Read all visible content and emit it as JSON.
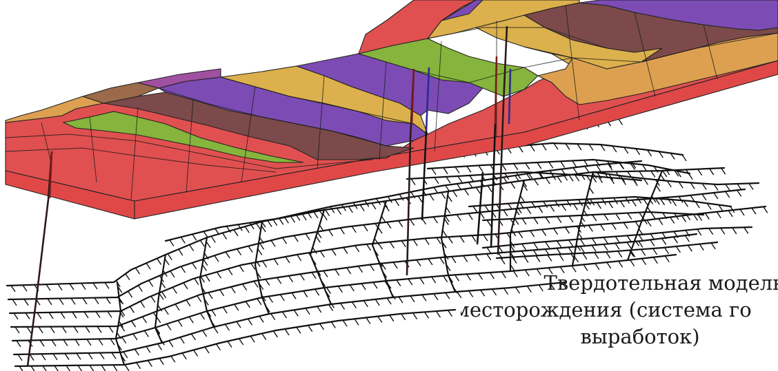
{
  "caption": {
    "line1": "Твердотельная модель",
    "line2": "месторождения (система го",
    "line3": "выработок)"
  },
  "colors": {
    "red": "#e05050",
    "green": "#86b43c",
    "purple": "#7c4cb4",
    "yellow": "#dcb04c",
    "brown": "#7c4a4a",
    "orange": "#dca050",
    "slab_side": "#e04848",
    "lines": "#111111"
  }
}
